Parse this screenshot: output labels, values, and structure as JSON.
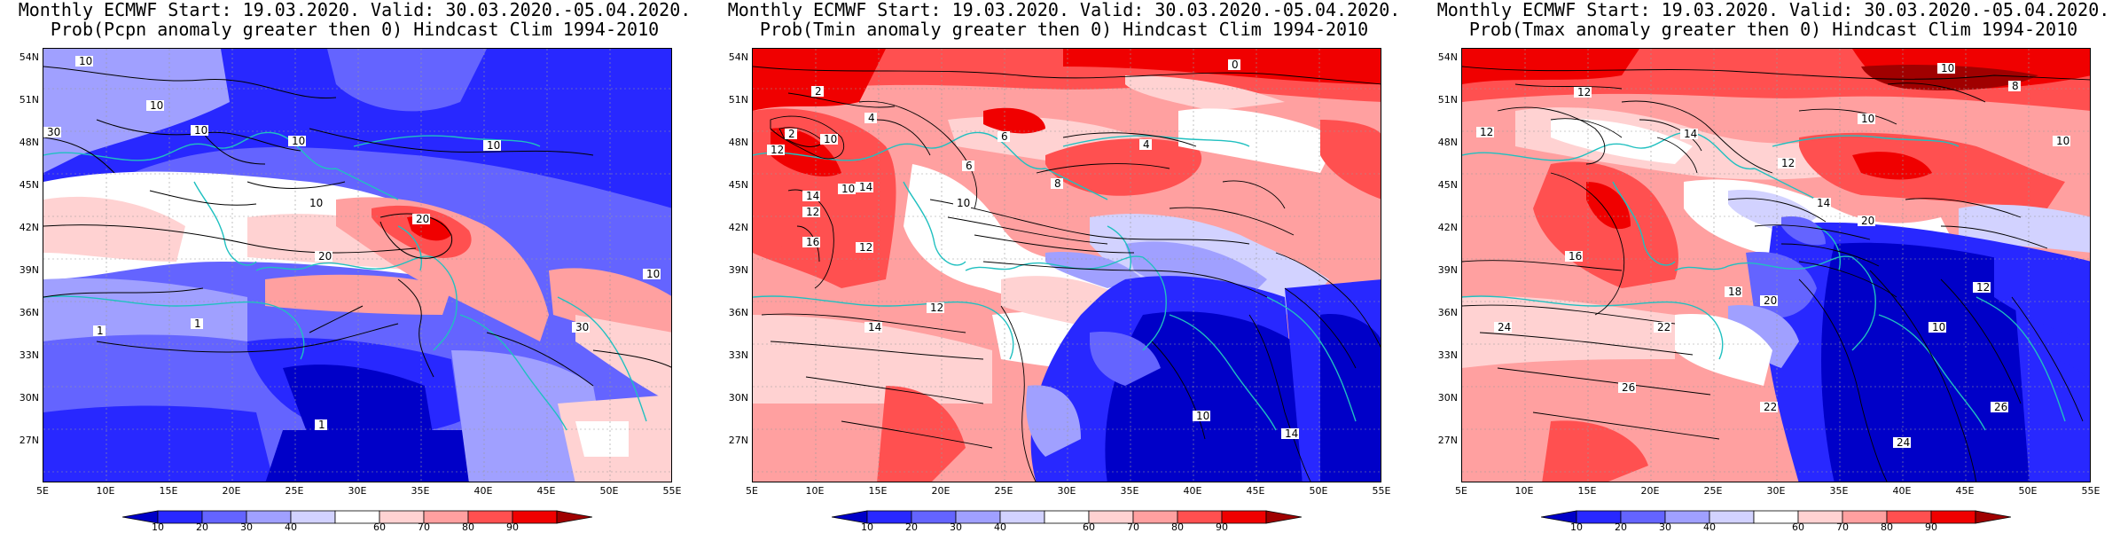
{
  "panels": [
    {
      "title_line1": "Monthly ECMWF Start: 19.03.2020. Valid: 30.03.2020.-05.04.2020.",
      "title_line2": "Prob(Pcpn anomaly greater then 0) Hindcast Clim 1994-2010",
      "contour_labels": [
        "10",
        "10",
        "10",
        "30",
        "10",
        "10",
        "10",
        "20",
        "20",
        "1",
        "1",
        "1",
        "30",
        "10"
      ]
    },
    {
      "title_line1": "Monthly ECMWF Start: 19.03.2020. Valid: 30.03.2020.-05.04.2020.",
      "title_line2": "Prob(Tmin anomaly greater then 0) Hindcast Clim 1994-2010",
      "contour_labels": [
        "2",
        "0",
        "2",
        "4",
        "6",
        "4",
        "6",
        "10",
        "12",
        "14",
        "12",
        "10",
        "16",
        "14",
        "12",
        "10",
        "8",
        "14",
        "12",
        "10",
        "14"
      ]
    },
    {
      "title_line1": "Monthly ECMWF Start: 19.03.2020. Valid: 30.03.2020.-05.04.2020.",
      "title_line2": "Prob(Tmax anomaly greater then 0) Hindcast Clim 1994-2010",
      "contour_labels": [
        "12",
        "10",
        "8",
        "10",
        "14",
        "12",
        "10",
        "12",
        "16",
        "18",
        "20",
        "22",
        "24",
        "26",
        "20",
        "14",
        "24",
        "22",
        "12",
        "10",
        "26"
      ]
    }
  ],
  "axes": {
    "y_ticks": [
      "54N",
      "51N",
      "48N",
      "45N",
      "42N",
      "39N",
      "36N",
      "33N",
      "30N",
      "27N"
    ],
    "x_ticks": [
      "5E",
      "10E",
      "15E",
      "20E",
      "25E",
      "30E",
      "35E",
      "40E",
      "45E",
      "50E",
      "55E"
    ]
  },
  "colorbar": {
    "labels": [
      "10",
      "20",
      "30",
      "40",
      "60",
      "70",
      "80",
      "90"
    ],
    "colors": [
      "#0000c8",
      "#2828ff",
      "#6464ff",
      "#a0a0ff",
      "#d2d2ff",
      "#ffffff",
      "#ffd2d2",
      "#ffa0a0",
      "#ff5050",
      "#f00000",
      "#a00000"
    ]
  },
  "colors": {
    "coast": "#20c0c0",
    "contour": "#000000",
    "frame": "#000000"
  }
}
